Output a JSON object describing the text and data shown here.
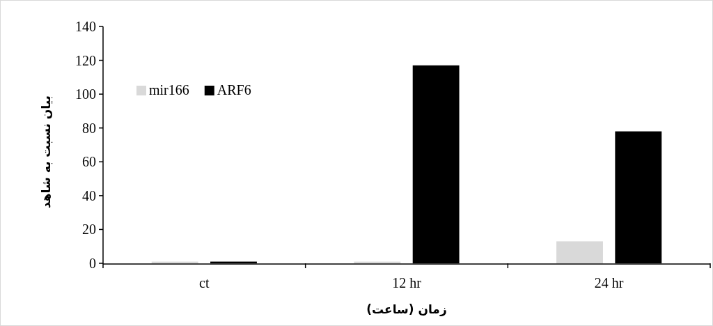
{
  "chart_data": {
    "type": "bar",
    "categories": [
      "ct",
      "12 hr",
      "24 hr"
    ],
    "series": [
      {
        "name": "mir166",
        "color": "#d9d9d9",
        "values": [
          1,
          1,
          13
        ]
      },
      {
        "name": "ARF6",
        "color": "#000000",
        "values": [
          1,
          117,
          78
        ]
      }
    ],
    "xlabel": "زمان (ساعت)",
    "ylabel": "بیان نسبت به شاهد",
    "ylim": [
      0,
      140
    ],
    "yticks": [
      0,
      20,
      40,
      60,
      80,
      100,
      120,
      140
    ],
    "legend": "top left",
    "grid": false
  }
}
